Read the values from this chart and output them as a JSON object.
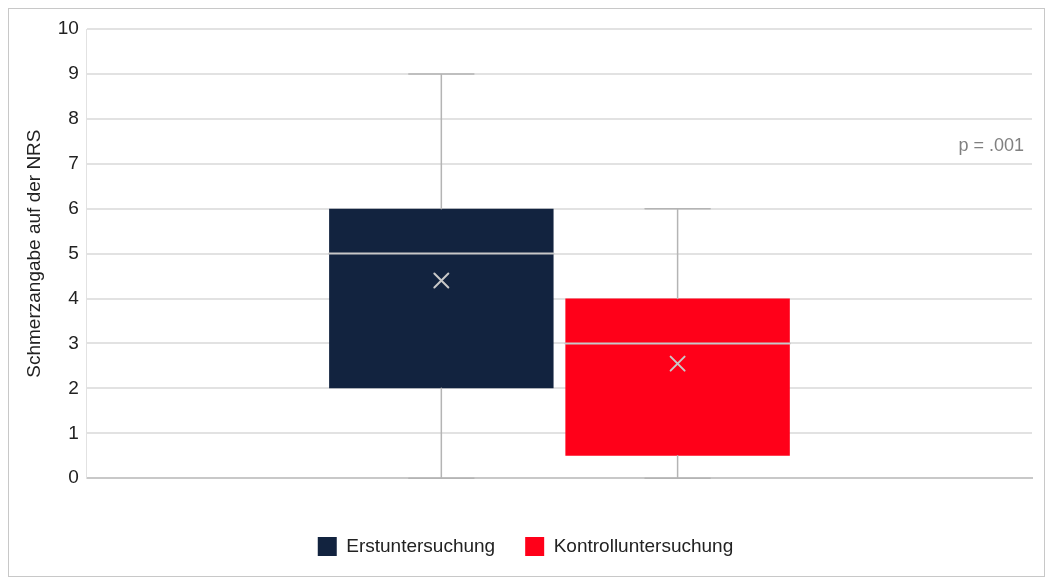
{
  "chart_data": {
    "type": "box",
    "ylabel": "Schmerzangabe auf der NRS",
    "categories": [
      null
    ],
    "ylim": [
      0,
      10
    ],
    "yticks": [
      0,
      1,
      2,
      3,
      4,
      5,
      6,
      7,
      8,
      9,
      10
    ],
    "grid": "y",
    "legend": "bottom",
    "annotations": [
      "p = .001"
    ],
    "series": [
      {
        "name": "Erstuntersuchung",
        "color": "#12233f",
        "boxes": [
          {
            "low": 0,
            "q1": 2,
            "median": 5,
            "q3": 6,
            "high": 9,
            "mean": 4.4
          }
        ]
      },
      {
        "name": "Kontrolluntersuchung",
        "color": "#ff0019",
        "boxes": [
          {
            "low": 0,
            "q1": 0.5,
            "median": 3,
            "q3": 4,
            "high": 6,
            "mean": 2.55
          }
        ]
      }
    ]
  }
}
